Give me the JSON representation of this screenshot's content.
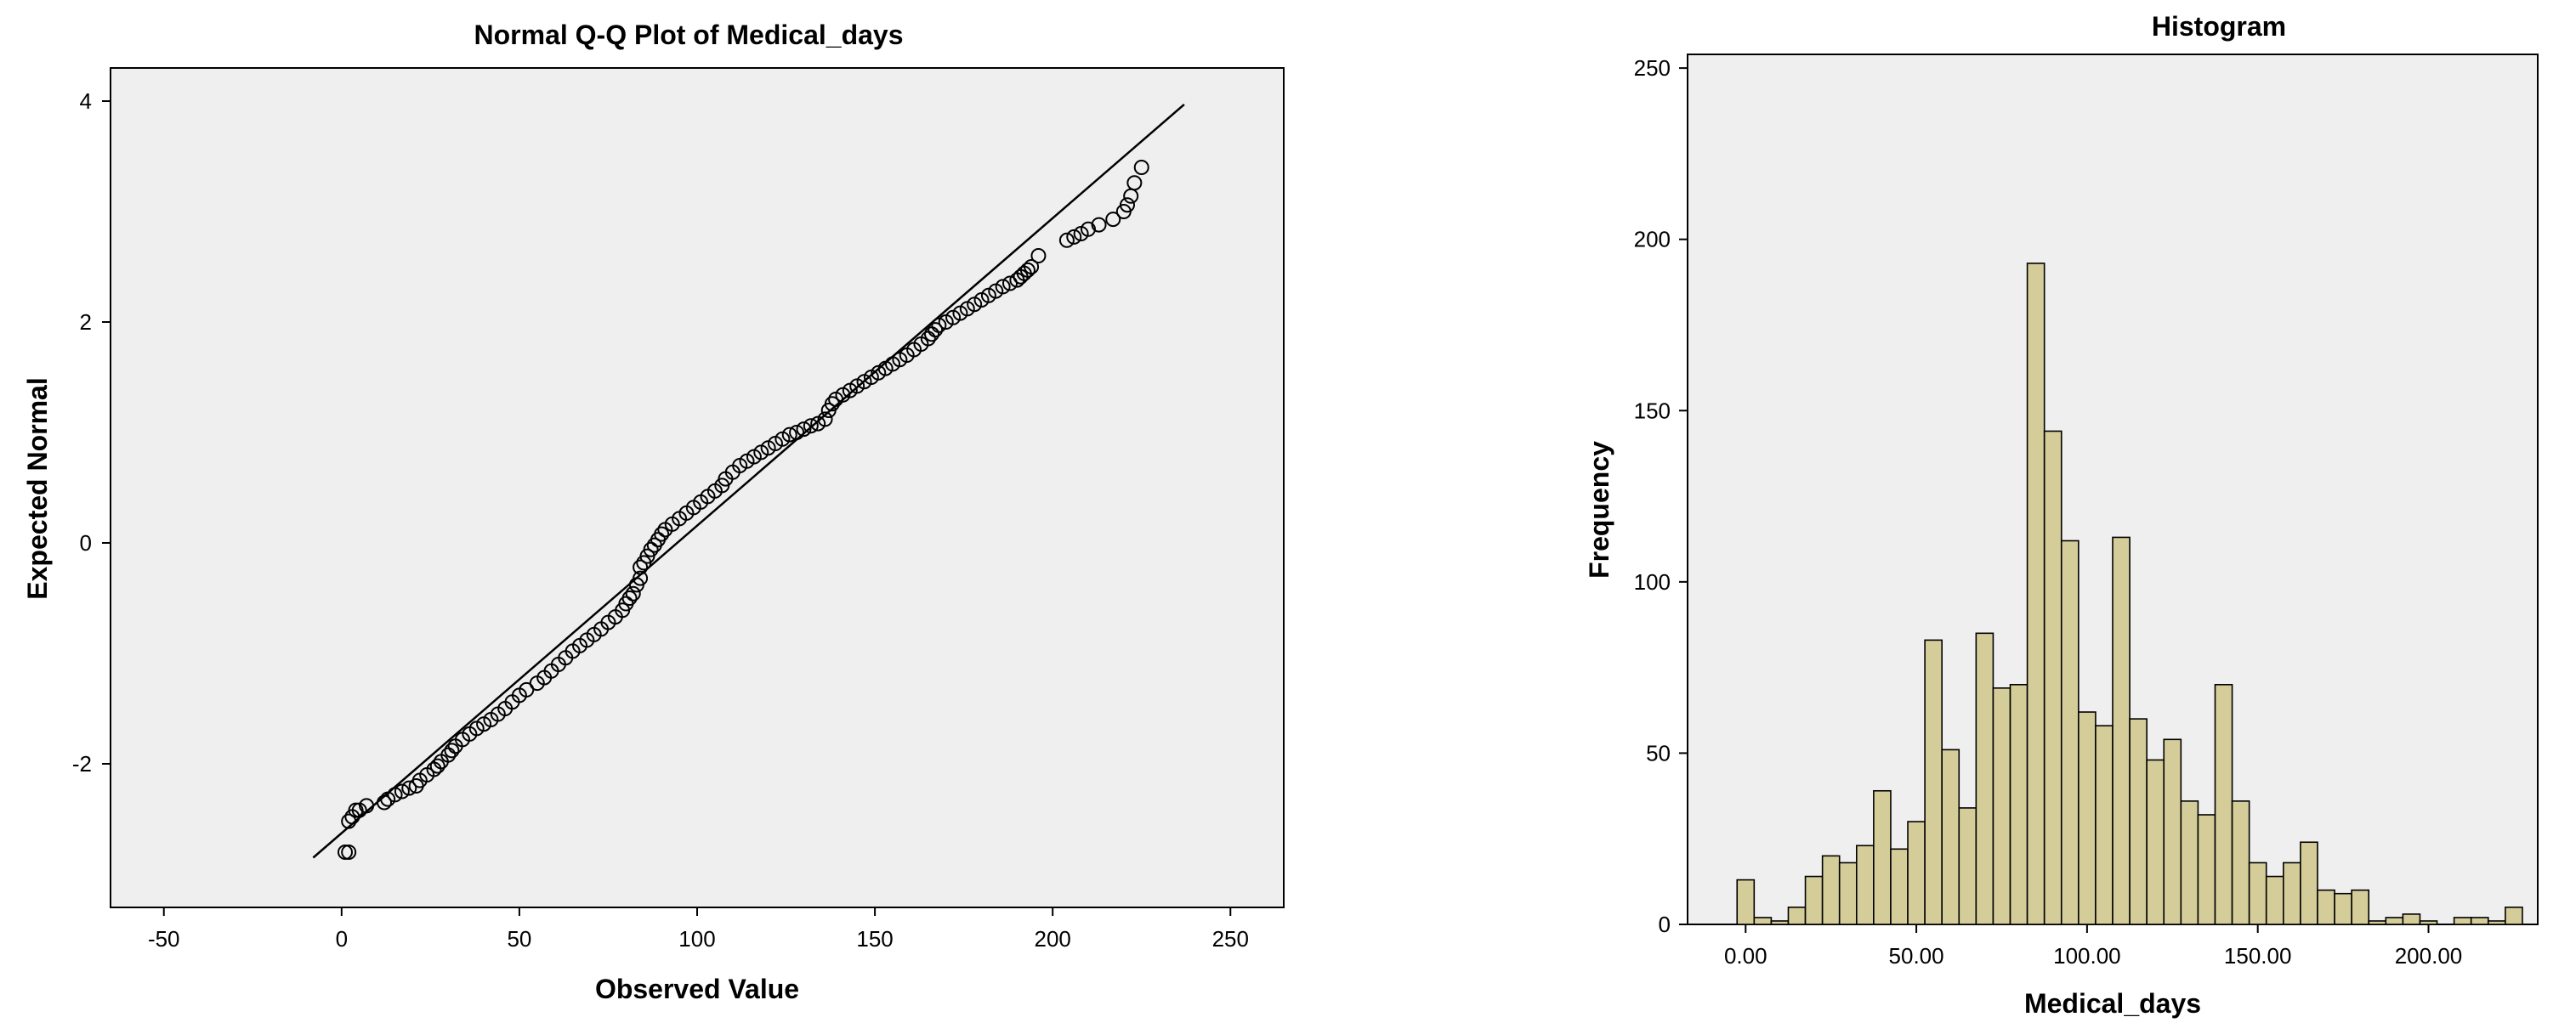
{
  "chart_data": [
    {
      "type": "scatter",
      "title": "Normal Q-Q Plot of Medical_days",
      "xlabel": "Observed Value",
      "ylabel": "Expected Normal",
      "xlim": [
        -65,
        265
      ],
      "ylim": [
        -3.3,
        4.3
      ],
      "xticks": [
        "-50",
        "0",
        "50",
        "100",
        "150",
        "200",
        "250"
      ],
      "xtick_values": [
        -50,
        0,
        50,
        100,
        150,
        200,
        250
      ],
      "yticks": [
        "4",
        "2",
        "0",
        "-2"
      ],
      "ytick_values": [
        4,
        2,
        0,
        -2
      ],
      "grid": false,
      "background": "#efefef",
      "reference_line": {
        "x": [
          -8,
          237
        ],
        "y": [
          -2.85,
          3.97
        ]
      },
      "points": [
        [
          1,
          -2.8
        ],
        [
          2,
          -2.8
        ],
        [
          2,
          -2.52
        ],
        [
          3,
          -2.48
        ],
        [
          4,
          -2.42
        ],
        [
          5,
          -2.42
        ],
        [
          7,
          -2.38
        ],
        [
          12,
          -2.35
        ],
        [
          13,
          -2.32
        ],
        [
          15,
          -2.28
        ],
        [
          17,
          -2.25
        ],
        [
          19,
          -2.22
        ],
        [
          21,
          -2.2
        ],
        [
          22,
          -2.15
        ],
        [
          24,
          -2.1
        ],
        [
          26,
          -2.05
        ],
        [
          27,
          -2.02
        ],
        [
          28,
          -1.98
        ],
        [
          30,
          -1.92
        ],
        [
          31,
          -1.88
        ],
        [
          32,
          -1.84
        ],
        [
          34,
          -1.78
        ],
        [
          36,
          -1.73
        ],
        [
          38,
          -1.68
        ],
        [
          40,
          -1.64
        ],
        [
          42,
          -1.6
        ],
        [
          44,
          -1.55
        ],
        [
          46,
          -1.5
        ],
        [
          48,
          -1.44
        ],
        [
          50,
          -1.38
        ],
        [
          52,
          -1.33
        ],
        [
          55,
          -1.27
        ],
        [
          57,
          -1.22
        ],
        [
          59,
          -1.16
        ],
        [
          61,
          -1.1
        ],
        [
          63,
          -1.04
        ],
        [
          65,
          -0.98
        ],
        [
          67,
          -0.93
        ],
        [
          69,
          -0.88
        ],
        [
          71,
          -0.83
        ],
        [
          73,
          -0.78
        ],
        [
          75,
          -0.72
        ],
        [
          77,
          -0.67
        ],
        [
          79,
          -0.61
        ],
        [
          80,
          -0.55
        ],
        [
          81,
          -0.5
        ],
        [
          82,
          -0.46
        ],
        [
          83,
          -0.38
        ],
        [
          84,
          -0.32
        ],
        [
          84,
          -0.22
        ],
        [
          85,
          -0.18
        ],
        [
          86,
          -0.12
        ],
        [
          87,
          -0.06
        ],
        [
          88,
          -0.02
        ],
        [
          89,
          0.03
        ],
        [
          90,
          0.08
        ],
        [
          91,
          0.12
        ],
        [
          93,
          0.17
        ],
        [
          95,
          0.22
        ],
        [
          97,
          0.27
        ],
        [
          99,
          0.32
        ],
        [
          101,
          0.37
        ],
        [
          103,
          0.42
        ],
        [
          105,
          0.47
        ],
        [
          107,
          0.52
        ],
        [
          108,
          0.58
        ],
        [
          110,
          0.64
        ],
        [
          112,
          0.7
        ],
        [
          114,
          0.74
        ],
        [
          116,
          0.78
        ],
        [
          118,
          0.82
        ],
        [
          120,
          0.86
        ],
        [
          122,
          0.9
        ],
        [
          124,
          0.94
        ],
        [
          126,
          0.98
        ],
        [
          128,
          1.0
        ],
        [
          130,
          1.03
        ],
        [
          132,
          1.06
        ],
        [
          134,
          1.08
        ],
        [
          136,
          1.12
        ],
        [
          137,
          1.2
        ],
        [
          138,
          1.26
        ],
        [
          139,
          1.3
        ],
        [
          141,
          1.34
        ],
        [
          143,
          1.38
        ],
        [
          145,
          1.42
        ],
        [
          147,
          1.46
        ],
        [
          149,
          1.5
        ],
        [
          151,
          1.54
        ],
        [
          153,
          1.58
        ],
        [
          155,
          1.62
        ],
        [
          157,
          1.66
        ],
        [
          159,
          1.7
        ],
        [
          161,
          1.75
        ],
        [
          163,
          1.8
        ],
        [
          165,
          1.85
        ],
        [
          166,
          1.89
        ],
        [
          167,
          1.93
        ],
        [
          168,
          1.97
        ],
        [
          170,
          2.0
        ],
        [
          172,
          2.04
        ],
        [
          174,
          2.08
        ],
        [
          176,
          2.12
        ],
        [
          178,
          2.16
        ],
        [
          180,
          2.2
        ],
        [
          182,
          2.24
        ],
        [
          184,
          2.28
        ],
        [
          186,
          2.32
        ],
        [
          188,
          2.35
        ],
        [
          190,
          2.38
        ],
        [
          191,
          2.41
        ],
        [
          192,
          2.44
        ],
        [
          193,
          2.47
        ],
        [
          194,
          2.5
        ],
        [
          196,
          2.6
        ],
        [
          204,
          2.74
        ],
        [
          206,
          2.77
        ],
        [
          208,
          2.8
        ],
        [
          210,
          2.84
        ],
        [
          213,
          2.88
        ],
        [
          217,
          2.93
        ],
        [
          220,
          3.0
        ],
        [
          221,
          3.06
        ],
        [
          222,
          3.14
        ],
        [
          223,
          3.26
        ],
        [
          225,
          3.4
        ]
      ]
    },
    {
      "type": "bar",
      "title": "Histogram",
      "xlabel": "Medical_days",
      "ylabel": "Frequency",
      "xlim": [
        -17,
        232
      ],
      "ylim": [
        0,
        254
      ],
      "xticks": [
        "0.00",
        "50.00",
        "100.00",
        "150.00",
        "200.00"
      ],
      "xtick_values": [
        0,
        50,
        100,
        150,
        200
      ],
      "yticks": [
        "250",
        "200",
        "150",
        "100",
        "50",
        "0"
      ],
      "ytick_values": [
        250,
        200,
        150,
        100,
        50,
        0
      ],
      "grid": false,
      "background": "#efefef",
      "bar_color": "#d4cc99",
      "bin_start": 0,
      "bin_width": 5,
      "values": [
        13,
        2,
        1,
        5,
        14,
        20,
        18,
        23,
        39,
        22,
        30,
        83,
        51,
        34,
        85,
        69,
        70,
        193,
        144,
        112,
        62,
        58,
        113,
        60,
        48,
        54,
        36,
        32,
        70,
        36,
        18,
        14,
        18,
        24,
        10,
        9,
        10,
        1,
        2,
        3,
        1,
        0,
        2,
        2,
        1,
        5
      ]
    }
  ]
}
